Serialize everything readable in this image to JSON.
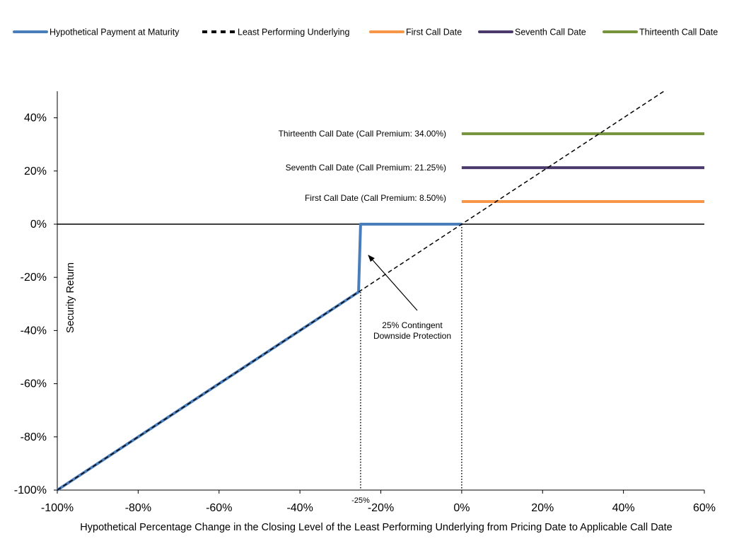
{
  "chart_data": {
    "type": "line",
    "xlabel": "Hypothetical Percentage Change in the Closing Level of the Least Performing Underlying from Pricing Date to Applicable Call Date",
    "ylabel": "Security Return",
    "xlim": [
      -100,
      60
    ],
    "ylim": [
      -100,
      50
    ],
    "x_ticks": [
      -100,
      -80,
      -60,
      -40,
      -20,
      0,
      20,
      40,
      60
    ],
    "x_tick_labels": [
      "-100%",
      "-80%",
      "-60%",
      "-40%",
      "-20%",
      "0%",
      "20%",
      "40%",
      "60%"
    ],
    "y_ticks": [
      -100,
      -80,
      -60,
      -40,
      -20,
      0,
      20,
      40
    ],
    "y_tick_labels": [
      "-100%",
      "-80%",
      "-60%",
      "-40%",
      "-20%",
      "0%",
      "20%",
      "40%"
    ],
    "legend_position": "top",
    "grid": false,
    "series": [
      {
        "name": "Hypothetical Payment at Maturity",
        "color": "#4A7EBB",
        "style": "solid",
        "x": [
          -100,
          -25.5,
          -25,
          0
        ],
        "y": [
          -100,
          -25.5,
          0,
          0
        ]
      },
      {
        "name": "Least Performing Underlying",
        "color": "#000000",
        "style": "dashed",
        "x": [
          -100,
          50
        ],
        "y": [
          -100,
          50
        ]
      },
      {
        "name": "First Call Date",
        "color": "#F79646",
        "style": "solid",
        "x": [
          0,
          60
        ],
        "y": [
          8.5,
          8.5
        ]
      },
      {
        "name": "Seventh Call Date",
        "color": "#4B3A6B",
        "style": "solid",
        "x": [
          0,
          60
        ],
        "y": [
          21.25,
          21.25
        ]
      },
      {
        "name": "Thirteenth Call Date",
        "color": "#77933C",
        "style": "solid",
        "x": [
          0,
          60
        ],
        "y": [
          34,
          34
        ]
      }
    ],
    "annotations": {
      "thirteenth_label": "Thirteenth  Call Date (Call Premium: 34.00%)",
      "seventh_label": "Seventh  Call Date (Call Premium: 21.25%)",
      "first_label": "First Call Date (Call Premium: 8.50%)",
      "protection_line1": "25% Contingent",
      "protection_line2": "Downside Protection",
      "barrier_label": "-25%"
    },
    "barrier_value": -25,
    "ann_values": {
      "thirteenth": 34,
      "seventh": 21.25,
      "first": 8.5
    }
  }
}
